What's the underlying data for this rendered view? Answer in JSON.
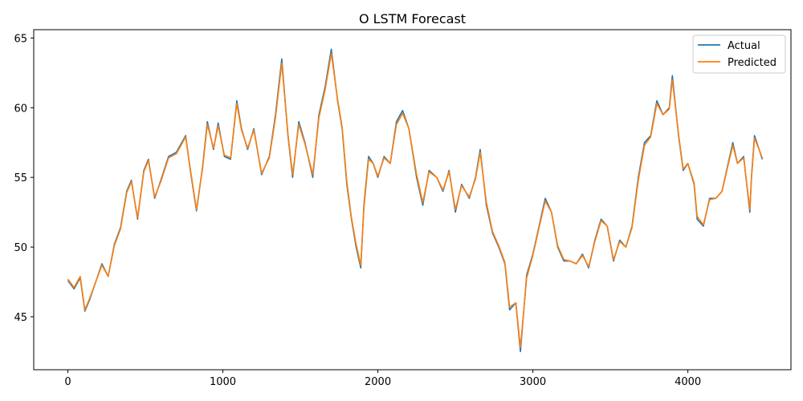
{
  "chart_data": {
    "type": "line",
    "title": "O LSTM Forecast",
    "xlabel": "",
    "ylabel": "",
    "xlim": [
      -220,
      4665
    ],
    "ylim": [
      41.2,
      65.6
    ],
    "xticks": [
      0,
      1000,
      2000,
      3000,
      4000
    ],
    "yticks": [
      45,
      50,
      55,
      60,
      65
    ],
    "grid": false,
    "legend_position": "top-right",
    "series": [
      {
        "name": "Actual",
        "color": "#1f77b4",
        "points": [
          [
            0,
            47.6
          ],
          [
            40,
            47.0
          ],
          [
            80,
            47.8
          ],
          [
            110,
            45.4
          ],
          [
            140,
            46.2
          ],
          [
            180,
            47.5
          ],
          [
            220,
            48.8
          ],
          [
            260,
            47.9
          ],
          [
            300,
            50.2
          ],
          [
            340,
            51.4
          ],
          [
            380,
            54.0
          ],
          [
            410,
            54.8
          ],
          [
            450,
            52.0
          ],
          [
            490,
            55.5
          ],
          [
            520,
            56.3
          ],
          [
            560,
            53.5
          ],
          [
            600,
            54.8
          ],
          [
            650,
            56.5
          ],
          [
            700,
            56.8
          ],
          [
            760,
            58.0
          ],
          [
            790,
            55.5
          ],
          [
            830,
            52.6
          ],
          [
            870,
            55.8
          ],
          [
            900,
            59.0
          ],
          [
            940,
            57.0
          ],
          [
            970,
            58.9
          ],
          [
            1010,
            56.5
          ],
          [
            1050,
            56.3
          ],
          [
            1090,
            60.5
          ],
          [
            1120,
            58.5
          ],
          [
            1160,
            57.0
          ],
          [
            1200,
            58.5
          ],
          [
            1250,
            55.2
          ],
          [
            1300,
            56.5
          ],
          [
            1340,
            59.5
          ],
          [
            1380,
            63.5
          ],
          [
            1420,
            58.0
          ],
          [
            1450,
            55.0
          ],
          [
            1490,
            59.0
          ],
          [
            1530,
            57.5
          ],
          [
            1580,
            55.0
          ],
          [
            1620,
            59.5
          ],
          [
            1660,
            61.5
          ],
          [
            1700,
            64.2
          ],
          [
            1740,
            60.5
          ],
          [
            1770,
            58.5
          ],
          [
            1800,
            54.5
          ],
          [
            1830,
            52.0
          ],
          [
            1860,
            50.0
          ],
          [
            1890,
            48.5
          ],
          [
            1910,
            53.0
          ],
          [
            1940,
            56.5
          ],
          [
            1970,
            56.0
          ],
          [
            2000,
            55.0
          ],
          [
            2040,
            56.5
          ],
          [
            2080,
            56.0
          ],
          [
            2120,
            59.0
          ],
          [
            2160,
            59.8
          ],
          [
            2200,
            58.5
          ],
          [
            2250,
            55.0
          ],
          [
            2290,
            53.0
          ],
          [
            2330,
            55.5
          ],
          [
            2380,
            55.0
          ],
          [
            2420,
            54.0
          ],
          [
            2460,
            55.5
          ],
          [
            2500,
            52.5
          ],
          [
            2540,
            54.5
          ],
          [
            2590,
            53.5
          ],
          [
            2630,
            55.0
          ],
          [
            2660,
            57.0
          ],
          [
            2700,
            53.0
          ],
          [
            2740,
            51.0
          ],
          [
            2780,
            50.0
          ],
          [
            2820,
            48.8
          ],
          [
            2850,
            45.5
          ],
          [
            2890,
            46.0
          ],
          [
            2920,
            42.5
          ],
          [
            2960,
            48.0
          ],
          [
            3000,
            49.5
          ],
          [
            3040,
            51.5
          ],
          [
            3080,
            53.5
          ],
          [
            3120,
            52.5
          ],
          [
            3160,
            50.0
          ],
          [
            3200,
            49.0
          ],
          [
            3240,
            49.0
          ],
          [
            3280,
            48.8
          ],
          [
            3320,
            49.5
          ],
          [
            3360,
            48.5
          ],
          [
            3400,
            50.5
          ],
          [
            3440,
            52.0
          ],
          [
            3480,
            51.5
          ],
          [
            3520,
            49.0
          ],
          [
            3560,
            50.5
          ],
          [
            3600,
            50.0
          ],
          [
            3640,
            51.5
          ],
          [
            3680,
            55.0
          ],
          [
            3720,
            57.5
          ],
          [
            3760,
            58.0
          ],
          [
            3800,
            60.5
          ],
          [
            3840,
            59.5
          ],
          [
            3880,
            60.0
          ],
          [
            3900,
            62.3
          ],
          [
            3940,
            58.0
          ],
          [
            3970,
            55.5
          ],
          [
            4000,
            56.0
          ],
          [
            4040,
            54.5
          ],
          [
            4060,
            52.0
          ],
          [
            4100,
            51.5
          ],
          [
            4140,
            53.5
          ],
          [
            4180,
            53.5
          ],
          [
            4220,
            54.0
          ],
          [
            4260,
            56.0
          ],
          [
            4290,
            57.5
          ],
          [
            4320,
            56.0
          ],
          [
            4360,
            56.5
          ],
          [
            4400,
            52.5
          ],
          [
            4410,
            55.0
          ],
          [
            4430,
            58.0
          ],
          [
            4460,
            57.0
          ],
          [
            4480,
            56.3
          ]
        ]
      },
      {
        "name": "Predicted",
        "color": "#ff7f0e",
        "points": [
          [
            0,
            47.7
          ],
          [
            40,
            47.1
          ],
          [
            80,
            47.9
          ],
          [
            110,
            45.5
          ],
          [
            140,
            46.3
          ],
          [
            180,
            47.5
          ],
          [
            220,
            48.7
          ],
          [
            260,
            47.9
          ],
          [
            300,
            50.1
          ],
          [
            340,
            51.3
          ],
          [
            380,
            53.9
          ],
          [
            410,
            54.7
          ],
          [
            450,
            52.1
          ],
          [
            490,
            55.4
          ],
          [
            520,
            56.2
          ],
          [
            560,
            53.6
          ],
          [
            600,
            54.7
          ],
          [
            650,
            56.4
          ],
          [
            700,
            56.7
          ],
          [
            760,
            57.9
          ],
          [
            790,
            55.6
          ],
          [
            830,
            52.7
          ],
          [
            870,
            55.7
          ],
          [
            900,
            58.8
          ],
          [
            940,
            57.1
          ],
          [
            970,
            58.7
          ],
          [
            1010,
            56.6
          ],
          [
            1050,
            56.4
          ],
          [
            1090,
            60.3
          ],
          [
            1120,
            58.4
          ],
          [
            1160,
            57.1
          ],
          [
            1200,
            58.4
          ],
          [
            1250,
            55.3
          ],
          [
            1300,
            56.4
          ],
          [
            1340,
            59.3
          ],
          [
            1380,
            63.2
          ],
          [
            1420,
            58.1
          ],
          [
            1450,
            55.2
          ],
          [
            1490,
            58.8
          ],
          [
            1530,
            57.4
          ],
          [
            1580,
            55.2
          ],
          [
            1620,
            59.3
          ],
          [
            1660,
            61.3
          ],
          [
            1700,
            63.9
          ],
          [
            1740,
            60.6
          ],
          [
            1770,
            58.6
          ],
          [
            1800,
            54.7
          ],
          [
            1830,
            52.1
          ],
          [
            1860,
            50.2
          ],
          [
            1890,
            48.7
          ],
          [
            1910,
            52.8
          ],
          [
            1940,
            56.3
          ],
          [
            1970,
            56.0
          ],
          [
            2000,
            55.1
          ],
          [
            2040,
            56.4
          ],
          [
            2080,
            56.0
          ],
          [
            2120,
            58.8
          ],
          [
            2160,
            59.6
          ],
          [
            2200,
            58.5
          ],
          [
            2250,
            55.2
          ],
          [
            2290,
            53.2
          ],
          [
            2330,
            55.4
          ],
          [
            2380,
            55.0
          ],
          [
            2420,
            54.1
          ],
          [
            2460,
            55.4
          ],
          [
            2500,
            52.7
          ],
          [
            2540,
            54.4
          ],
          [
            2590,
            53.6
          ],
          [
            2630,
            54.9
          ],
          [
            2660,
            56.8
          ],
          [
            2700,
            53.2
          ],
          [
            2740,
            51.1
          ],
          [
            2780,
            50.1
          ],
          [
            2820,
            48.9
          ],
          [
            2850,
            45.7
          ],
          [
            2890,
            46.0
          ],
          [
            2920,
            42.8
          ],
          [
            2960,
            47.8
          ],
          [
            3000,
            49.4
          ],
          [
            3040,
            51.4
          ],
          [
            3080,
            53.3
          ],
          [
            3120,
            52.5
          ],
          [
            3160,
            50.1
          ],
          [
            3200,
            49.1
          ],
          [
            3240,
            49.0
          ],
          [
            3280,
            48.8
          ],
          [
            3320,
            49.4
          ],
          [
            3360,
            48.6
          ],
          [
            3400,
            50.4
          ],
          [
            3440,
            51.9
          ],
          [
            3480,
            51.5
          ],
          [
            3520,
            49.1
          ],
          [
            3560,
            50.4
          ],
          [
            3600,
            50.0
          ],
          [
            3640,
            51.4
          ],
          [
            3680,
            54.8
          ],
          [
            3720,
            57.3
          ],
          [
            3760,
            57.9
          ],
          [
            3800,
            60.3
          ],
          [
            3840,
            59.5
          ],
          [
            3880,
            59.9
          ],
          [
            3900,
            62.0
          ],
          [
            3940,
            58.1
          ],
          [
            3970,
            55.6
          ],
          [
            4000,
            56.0
          ],
          [
            4040,
            54.6
          ],
          [
            4060,
            52.2
          ],
          [
            4100,
            51.6
          ],
          [
            4140,
            53.4
          ],
          [
            4180,
            53.5
          ],
          [
            4220,
            54.0
          ],
          [
            4260,
            55.9
          ],
          [
            4290,
            57.3
          ],
          [
            4320,
            56.0
          ],
          [
            4360,
            56.4
          ],
          [
            4400,
            52.7
          ],
          [
            4410,
            54.9
          ],
          [
            4430,
            57.8
          ],
          [
            4460,
            57.0
          ],
          [
            4480,
            56.4
          ]
        ]
      }
    ]
  }
}
